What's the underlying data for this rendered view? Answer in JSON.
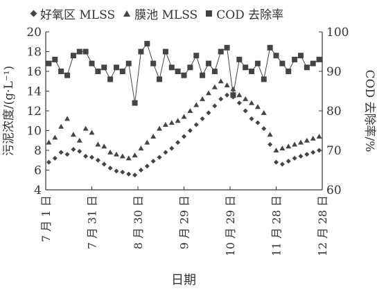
{
  "chart_data": {
    "type": "scatter",
    "title": "",
    "xlabel": "日期",
    "ylabel_left": "污泥浓度/(g·L⁻¹)",
    "ylabel_right": "COD 去除率/%",
    "ylim_left": [
      4,
      20
    ],
    "ylim_right": [
      60,
      100
    ],
    "yticks_left": [
      4,
      6,
      8,
      10,
      12,
      14,
      16,
      18,
      20
    ],
    "yticks_right": [
      60,
      70,
      80,
      90,
      100
    ],
    "xlim": [
      0,
      180
    ],
    "xtick_values": [
      0,
      30,
      60,
      90,
      120,
      150,
      180
    ],
    "xtick_labels": [
      "7 月 1 日",
      "7 月 31 日",
      "8 月 30 日",
      "9 月 29 日",
      "10 月 29 日",
      "11 月 28 日",
      "12 月 28 日"
    ],
    "legend_position": "top",
    "series": [
      {
        "name": "好氧区 MLSS",
        "marker": "diamond",
        "axis": "left",
        "x": [
          2,
          6,
          10,
          14,
          18,
          22,
          26,
          30,
          34,
          38,
          42,
          46,
          50,
          54,
          58,
          62,
          66,
          70,
          74,
          78,
          82,
          86,
          90,
          94,
          98,
          102,
          106,
          110,
          114,
          118,
          122,
          126,
          130,
          134,
          138,
          142,
          146,
          150,
          154,
          158,
          162,
          166,
          170,
          174,
          178
        ],
        "y": [
          6.8,
          7.2,
          7.8,
          7.6,
          8.1,
          7.9,
          7.4,
          7.3,
          7.0,
          6.6,
          6.2,
          5.9,
          5.8,
          5.6,
          5.5,
          6.0,
          6.4,
          6.9,
          7.3,
          7.8,
          8.2,
          8.8,
          9.4,
          10.0,
          10.6,
          11.2,
          11.8,
          12.5,
          13.2,
          13.6,
          13.4,
          12.8,
          12.0,
          11.2,
          10.8,
          10.2,
          8.6,
          6.8,
          6.6,
          6.9,
          7.2,
          7.4,
          7.6,
          7.8,
          8.0
        ]
      },
      {
        "name": "膜池 MLSS",
        "marker": "triangle",
        "axis": "left",
        "x": [
          2,
          6,
          10,
          14,
          18,
          22,
          26,
          30,
          34,
          38,
          42,
          46,
          50,
          54,
          58,
          62,
          66,
          70,
          74,
          78,
          82,
          86,
          90,
          94,
          98,
          102,
          106,
          110,
          114,
          118,
          122,
          126,
          130,
          134,
          138,
          142,
          146,
          150,
          154,
          158,
          162,
          166,
          170,
          174,
          178
        ],
        "y": [
          8.8,
          9.3,
          10.4,
          11.2,
          9.6,
          9.0,
          10.2,
          9.8,
          8.6,
          8.4,
          7.8,
          7.6,
          7.4,
          7.2,
          7.5,
          8.2,
          8.8,
          9.4,
          10.2,
          10.6,
          10.8,
          11.0,
          11.4,
          12.0,
          12.6,
          13.2,
          13.8,
          14.4,
          15.0,
          14.6,
          14.2,
          13.6,
          13.2,
          12.8,
          12.4,
          11.8,
          9.6,
          8.0,
          8.2,
          8.4,
          8.6,
          8.8,
          9.0,
          9.2,
          9.4
        ]
      },
      {
        "name": "COD 去除率",
        "marker": "square",
        "axis": "right",
        "connected": true,
        "x": [
          2,
          6,
          10,
          14,
          18,
          22,
          26,
          30,
          34,
          38,
          42,
          46,
          50,
          54,
          58,
          62,
          66,
          70,
          74,
          78,
          82,
          86,
          90,
          94,
          98,
          102,
          106,
          110,
          114,
          118,
          122,
          126,
          130,
          134,
          138,
          142,
          146,
          150,
          154,
          158,
          162,
          166,
          170,
          174,
          178
        ],
        "y": [
          92,
          93,
          90,
          89,
          94,
          95,
          95,
          92,
          90,
          91,
          88,
          91,
          90,
          92,
          82,
          95,
          97,
          92,
          88,
          95,
          91,
          90,
          89,
          91,
          94,
          89,
          92,
          90,
          95,
          96,
          84,
          93,
          91,
          90,
          92,
          88,
          96,
          94,
          92,
          90,
          93,
          94,
          91,
          92,
          93
        ]
      }
    ]
  }
}
